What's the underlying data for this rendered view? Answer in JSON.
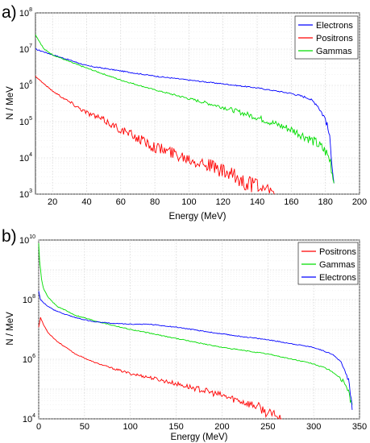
{
  "chart_data": [
    {
      "panel": "a)",
      "type": "line",
      "xlabel": "Energy (MeV)",
      "ylabel": "N / MeV",
      "xlim": [
        10,
        200
      ],
      "ylim": [
        1000,
        100000000
      ],
      "yscale": "log",
      "grid": true,
      "legend_position": "top-right",
      "xticks": [
        "20",
        "40",
        "60",
        "80",
        "100",
        "120",
        "140",
        "160",
        "180",
        "200"
      ],
      "yticks": [
        {
          "base": "10",
          "exp": "3"
        },
        {
          "base": "10",
          "exp": "4"
        },
        {
          "base": "10",
          "exp": "5"
        },
        {
          "base": "10",
          "exp": "6"
        },
        {
          "base": "10",
          "exp": "7"
        },
        {
          "base": "10",
          "exp": "8"
        }
      ],
      "series": [
        {
          "name": "Electrons",
          "color": "#0000ff",
          "x": [
            10,
            20,
            30,
            40,
            60,
            80,
            100,
            120,
            140,
            160,
            170,
            175,
            180,
            182,
            184,
            185
          ],
          "y": [
            10000000,
            7000000,
            5000000,
            3500000,
            2500000,
            1800000,
            1400000,
            1100000,
            850000,
            600000,
            450000,
            300000,
            120000,
            50000,
            8000,
            2000
          ]
        },
        {
          "name": "Positrons",
          "color": "#ff0000",
          "x": [
            10,
            15,
            20,
            30,
            40,
            50,
            60,
            70,
            80,
            90,
            100,
            110,
            120,
            130,
            140,
            145,
            150
          ],
          "y": [
            1800000,
            1100000,
            700000,
            350000,
            180000,
            110000,
            60000,
            35000,
            20000,
            14000,
            10000,
            7000,
            4000,
            2500,
            1500,
            1000,
            1000
          ]
        },
        {
          "name": "Gammas",
          "color": "#00dd00",
          "x": [
            10,
            15,
            20,
            30,
            40,
            60,
            80,
            100,
            120,
            140,
            160,
            170,
            175,
            180,
            183,
            185
          ],
          "y": [
            25000000,
            10000000,
            7000000,
            4500000,
            3000000,
            1400000,
            750000,
            430000,
            250000,
            130000,
            60000,
            35000,
            25000,
            15000,
            8000,
            2000
          ]
        }
      ]
    },
    {
      "panel": "b)",
      "type": "line",
      "xlabel": "Energy (MeV)",
      "ylabel": "N / MeV",
      "xlim": [
        0,
        350
      ],
      "ylim": [
        10000,
        10000000000
      ],
      "yscale": "log",
      "grid": true,
      "legend_position": "top-right",
      "xticks": [
        "0",
        "50",
        "100",
        "150",
        "200",
        "250",
        "300",
        "350"
      ],
      "yticks": [
        {
          "base": "10",
          "exp": "4"
        },
        {
          "base": "10",
          "exp": "6"
        },
        {
          "base": "10",
          "exp": "8"
        },
        {
          "base": "10",
          "exp": "10"
        }
      ],
      "series": [
        {
          "name": "Positrons",
          "color": "#ff0000",
          "x": [
            0,
            2,
            5,
            10,
            20,
            40,
            60,
            80,
            100,
            120,
            150,
            180,
            200,
            220,
            240,
            250,
            260,
            265
          ],
          "y": [
            12000000,
            25000000,
            15000000,
            8000000,
            4000000,
            1500000,
            800000,
            500000,
            330000,
            250000,
            150000,
            90000,
            60000,
            40000,
            25000,
            15000,
            12000,
            10000
          ]
        },
        {
          "name": "Gammas",
          "color": "#00dd00",
          "x": [
            0,
            1,
            3,
            5,
            10,
            20,
            40,
            60,
            80,
            100,
            150,
            200,
            250,
            300,
            320,
            335,
            342
          ],
          "y": [
            8000000000,
            2000000000,
            500000000,
            250000000,
            120000000,
            60000000,
            30000000,
            20000000,
            14000000,
            10000000,
            5000000,
            2500000,
            1500000,
            700000,
            400000,
            150000,
            30000
          ]
        },
        {
          "name": "Electrons",
          "color": "#0000ff",
          "x": [
            0,
            2,
            5,
            10,
            20,
            40,
            60,
            80,
            100,
            120,
            150,
            200,
            250,
            300,
            320,
            330,
            338,
            342
          ],
          "y": [
            200000000,
            100000000,
            80000000,
            60000000,
            40000000,
            25000000,
            18000000,
            16000000,
            15000000,
            15000000,
            12000000,
            7000000,
            4500000,
            2500000,
            1500000,
            800000,
            200000,
            20000
          ]
        }
      ]
    }
  ]
}
